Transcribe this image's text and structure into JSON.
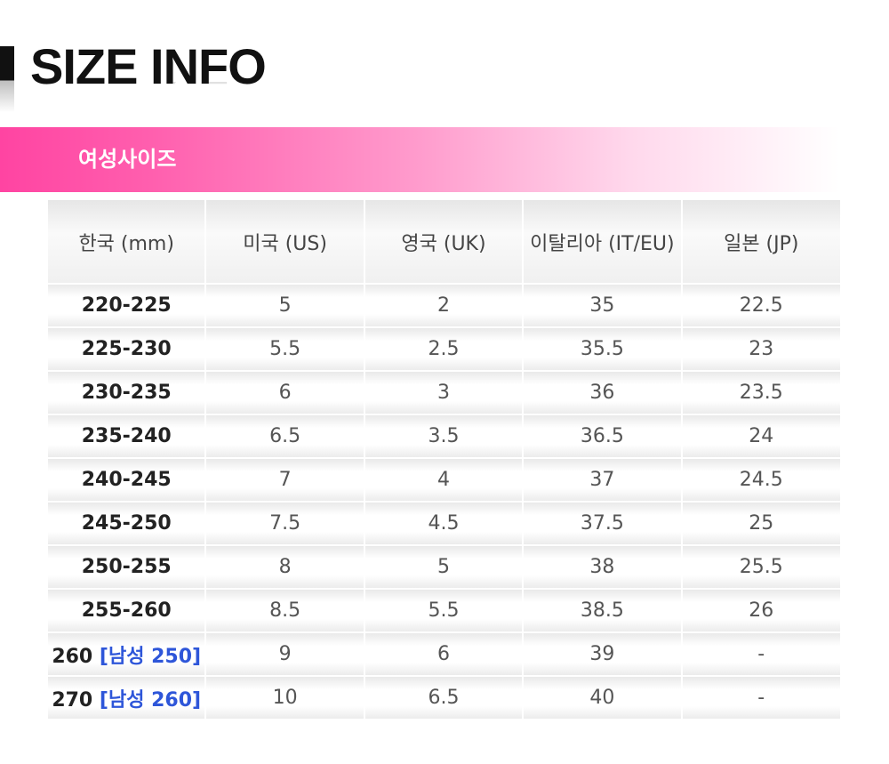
{
  "header": {
    "title": "SIZE INFO"
  },
  "banner": {
    "label": "여성사이즈"
  },
  "table": {
    "columns": [
      "한국 (mm)",
      "미국 (US)",
      "영국 (UK)",
      "이탈리아 (IT/EU)",
      "일본 (JP)"
    ],
    "rows": [
      {
        "kr": "220-225",
        "men": "",
        "us": "5",
        "uk": "2",
        "eu": "35",
        "jp": "22.5"
      },
      {
        "kr": "225-230",
        "men": "",
        "us": "5.5",
        "uk": "2.5",
        "eu": "35.5",
        "jp": "23"
      },
      {
        "kr": "230-235",
        "men": "",
        "us": "6",
        "uk": "3",
        "eu": "36",
        "jp": "23.5"
      },
      {
        "kr": "235-240",
        "men": "",
        "us": "6.5",
        "uk": "3.5",
        "eu": "36.5",
        "jp": "24"
      },
      {
        "kr": "240-245",
        "men": "",
        "us": "7",
        "uk": "4",
        "eu": "37",
        "jp": "24.5"
      },
      {
        "kr": "245-250",
        "men": "",
        "us": "7.5",
        "uk": "4.5",
        "eu": "37.5",
        "jp": "25"
      },
      {
        "kr": "250-255",
        "men": "",
        "us": "8",
        "uk": "5",
        "eu": "38",
        "jp": "25.5"
      },
      {
        "kr": "255-260",
        "men": "",
        "us": "8.5",
        "uk": "5.5",
        "eu": "38.5",
        "jp": "26"
      },
      {
        "kr": "260 ",
        "men": "[남성 250]",
        "us": "9",
        "uk": "6",
        "eu": "39",
        "jp": "-"
      },
      {
        "kr": "270 ",
        "men": "[남성 260]",
        "us": "10",
        "uk": "6.5",
        "eu": "40",
        "jp": "-"
      }
    ]
  },
  "colors": {
    "accent": "#ff44a2",
    "men_highlight": "#2e56d9"
  }
}
